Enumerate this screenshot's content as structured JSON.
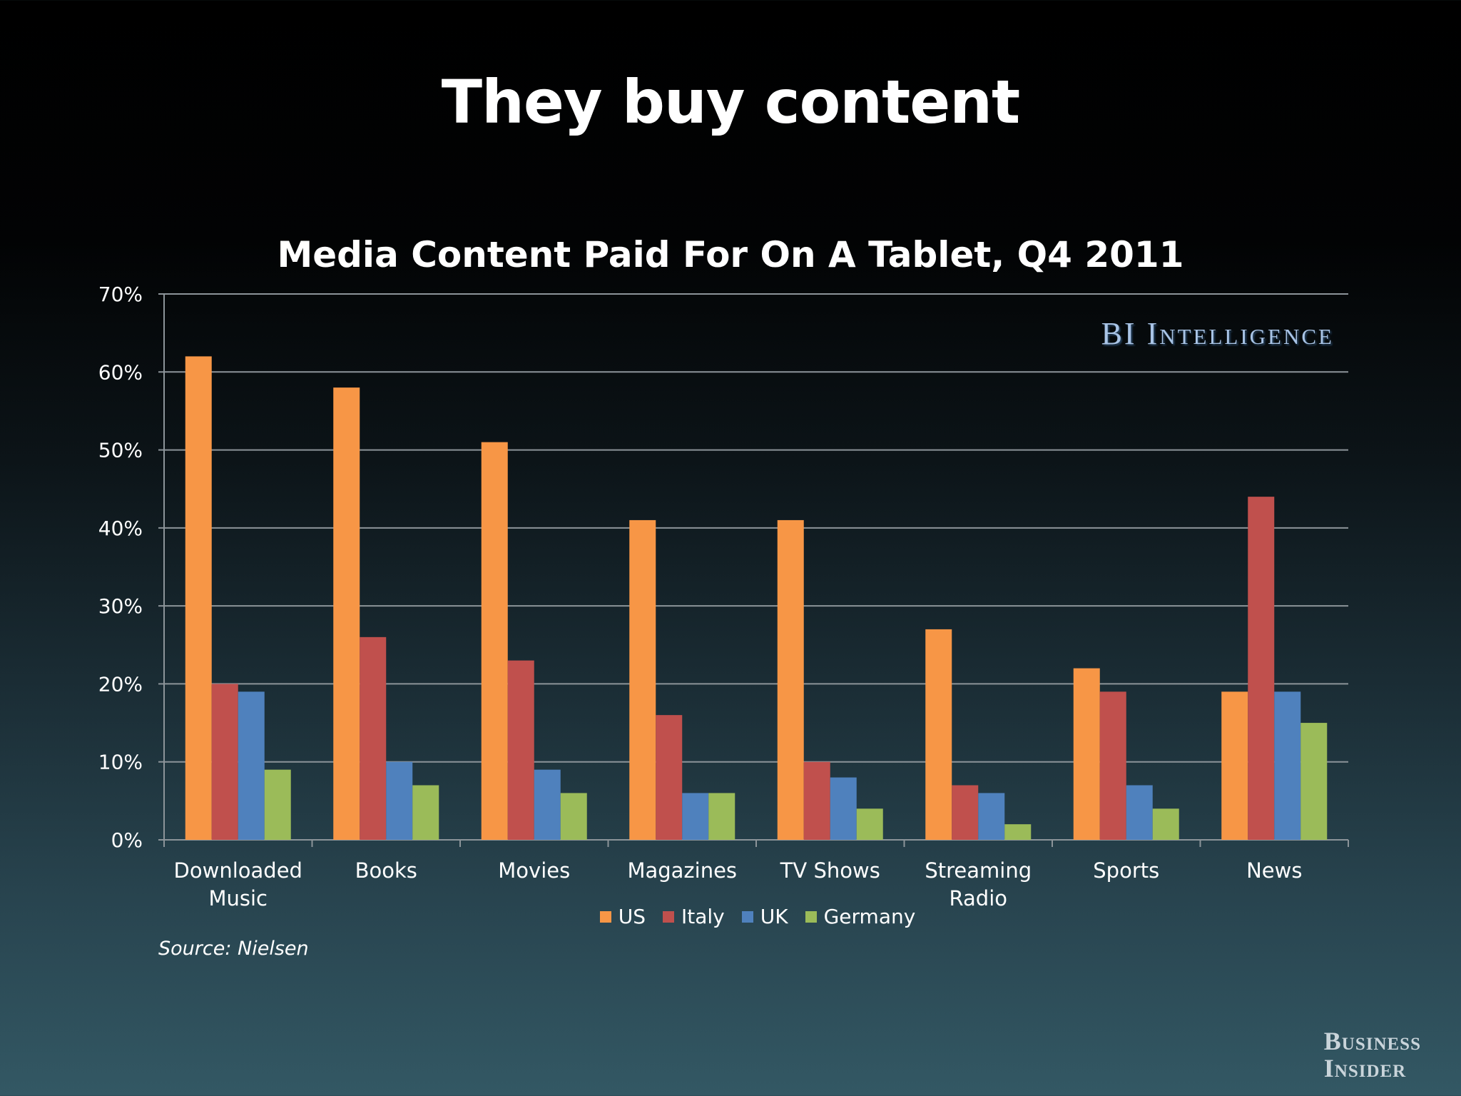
{
  "slide_title": "They buy content",
  "watermark": "BI Intelligence",
  "source": "Source: Nielsen",
  "logo": {
    "line1": "Business",
    "line2": "Insider"
  },
  "colors": {
    "us": "#f79646",
    "italy": "#c0504d",
    "uk": "#4f81bd",
    "germany": "#9bbb59",
    "gridline": "#8c9499"
  },
  "chart_data": {
    "type": "bar",
    "title": "Media Content Paid For On A Tablet, Q4 2011",
    "categories": [
      [
        "Downloaded",
        "Music"
      ],
      [
        "Books"
      ],
      [
        "Movies"
      ],
      [
        "Magazines"
      ],
      [
        "TV Shows"
      ],
      [
        "Streaming",
        "Radio"
      ],
      [
        "Sports"
      ],
      [
        "News"
      ]
    ],
    "series": [
      {
        "name": "US",
        "values": [
          62,
          58,
          51,
          41,
          41,
          27,
          22,
          19
        ]
      },
      {
        "name": "Italy",
        "values": [
          20,
          26,
          23,
          16,
          10,
          7,
          19,
          44
        ]
      },
      {
        "name": "UK",
        "values": [
          19,
          10,
          9,
          6,
          8,
          6,
          7,
          19
        ]
      },
      {
        "name": "Germany",
        "values": [
          9,
          7,
          6,
          6,
          4,
          2,
          4,
          15
        ]
      }
    ],
    "yticks": [
      "0%",
      "10%",
      "20%",
      "30%",
      "40%",
      "50%",
      "60%",
      "70%"
    ],
    "ylim": [
      0,
      70
    ],
    "grid": true,
    "legend": "bottom-center"
  }
}
